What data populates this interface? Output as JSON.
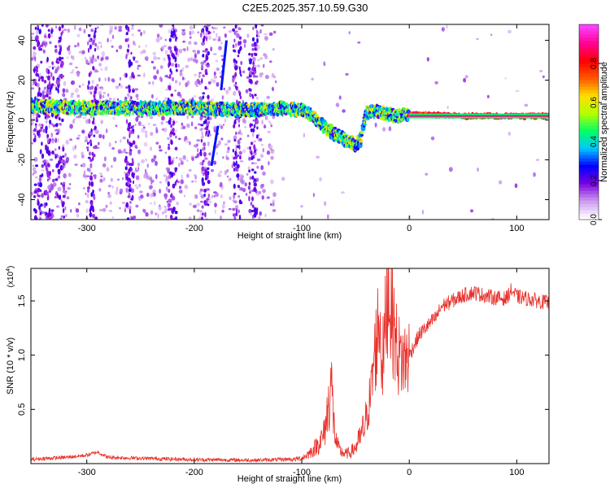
{
  "title": "C2E5.2025.357.10.59.G30",
  "chart_data": [
    {
      "type": "heatmap",
      "xlabel": "Height of straight line (km)",
      "ylabel": "Frequency (Hz)",
      "xlim": [
        -352,
        130
      ],
      "ylim": [
        -50,
        48
      ],
      "xticks": [
        -300,
        -200,
        -100,
        0,
        100
      ],
      "yticks": [
        -40,
        -20,
        0,
        20,
        40
      ],
      "colorbar": {
        "label": "Normalized spectral amplitude",
        "range": [
          0,
          1
        ],
        "ticks": [
          "0.0",
          "0.2",
          "0.4",
          "0.6",
          "0.8"
        ],
        "colors": [
          "#ffffff",
          "#cc99ee",
          "#7a00e0",
          "#0000ff",
          "#00c8ff",
          "#00ff66",
          "#b4ff00",
          "#ffe000",
          "#ff5a00",
          "#ff0000",
          "#ff0090",
          "#ff40ff"
        ]
      },
      "ridge": {
        "x": [
          -352,
          -300,
          -250,
          -200,
          -150,
          -120,
          -100,
          -90,
          -80,
          -70,
          -60,
          -50,
          -45,
          -40,
          -30,
          -20,
          -10,
          0,
          50,
          130
        ],
        "freq": [
          7,
          6,
          6,
          6,
          5,
          6,
          5,
          2,
          -3,
          -7,
          -10,
          -12,
          -10,
          4,
          4,
          3,
          2,
          3,
          2,
          2
        ]
      },
      "streaks": [
        {
          "x": [
            -175,
            -170
          ],
          "freq": [
            15,
            40
          ]
        },
        {
          "x": [
            -184,
            -178
          ],
          "freq": [
            -23,
            -3
          ]
        }
      ],
      "grid": false
    },
    {
      "type": "line",
      "xlabel": "Height of straight line (km)",
      "ylabel": "SNR (10 * v/v)",
      "y_multiplier": "(x10",
      "y_multiplier_exp": "4",
      "y_multiplier_close": ")",
      "xlim": [
        -352,
        130
      ],
      "ylim": [
        0,
        18000
      ],
      "xticks": [
        -300,
        -200,
        -100,
        0,
        100
      ],
      "yticks": [
        5000,
        10000,
        15000
      ],
      "ytick_labels": [
        "0.5",
        "1.0",
        "1.5"
      ],
      "color": "#e8302a",
      "series": [
        {
          "x": [
            -352,
            -340,
            -320,
            -300,
            -290,
            -280,
            -260,
            -240,
            -220,
            -200,
            -180,
            -160,
            -140,
            -120,
            -110,
            -100,
            -95,
            -90,
            -85,
            -80,
            -78,
            -75,
            -73,
            -70,
            -68,
            -65,
            -60,
            -55,
            -50,
            -45,
            -40,
            -35,
            -33,
            -30,
            -28,
            -25,
            -22,
            -20,
            -18,
            -15,
            -12,
            -10,
            -5,
            0,
            5,
            10,
            15,
            20,
            25,
            30,
            40,
            50,
            60,
            70,
            80,
            90,
            95,
            100,
            110,
            120,
            130
          ],
          "y": [
            300,
            400,
            500,
            700,
            1000,
            500,
            450,
            400,
            350,
            300,
            280,
            260,
            250,
            300,
            350,
            500,
            800,
            1200,
            1800,
            2500,
            3500,
            5500,
            8000,
            3500,
            2000,
            1200,
            900,
            1000,
            1500,
            2500,
            4000,
            7000,
            9500,
            11500,
            14000,
            9000,
            13000,
            16500,
            15500,
            13000,
            11000,
            10000,
            9500,
            10000,
            11000,
            12000,
            12500,
            13000,
            13500,
            14500,
            15000,
            15500,
            15800,
            15500,
            15300,
            15200,
            16000,
            15400,
            15200,
            15000,
            14800
          ]
        }
      ],
      "grid": false
    }
  ]
}
